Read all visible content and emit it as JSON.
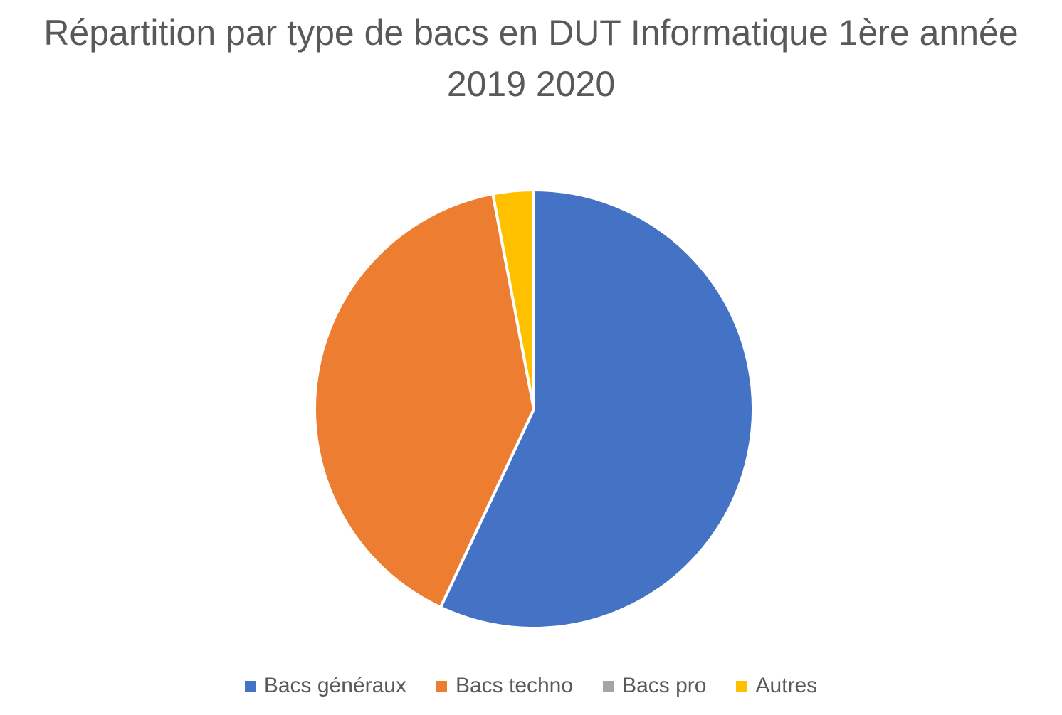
{
  "chart_data": {
    "type": "pie",
    "title_lines": [
      "Répartition par type de bacs en DUT Informatique 1ère année",
      "2019 2020"
    ],
    "categories": [
      "Bacs généraux",
      "Bacs techno",
      "Bacs pro",
      "Autres"
    ],
    "values": [
      57,
      40,
      0,
      3
    ],
    "colors": [
      "#4472C4",
      "#ED7D31",
      "#A5A5A5",
      "#FFC000"
    ],
    "start_angle_deg": 0,
    "direction": "clockwise",
    "legend_position": "bottom"
  }
}
